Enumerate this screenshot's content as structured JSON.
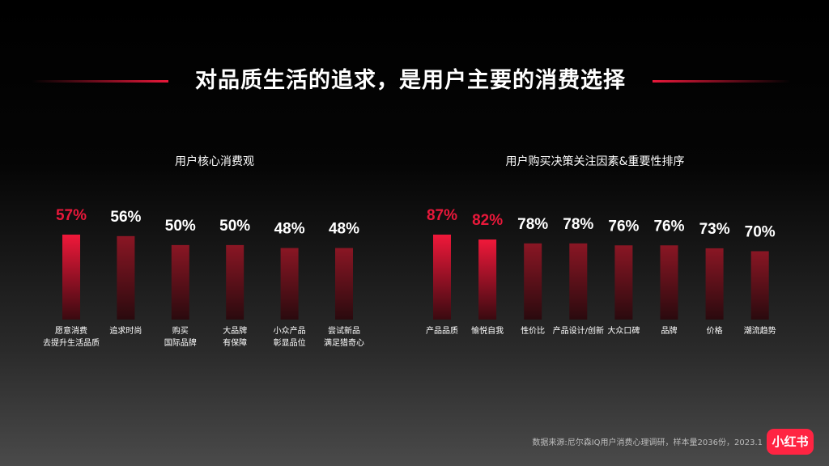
{
  "title": "对品质生活的追求，是用户主要的消费选择",
  "source": "数据来源:尼尔森IQ用户消费心理调研，样本量2036份，2023.1",
  "logo": "小红书",
  "colors": {
    "highlight": "#e8183a",
    "bar_top_red": "#e8183a",
    "bar_top_dark": "#7a1420",
    "text": "#ffffff"
  },
  "chart_data": [
    {
      "type": "bar",
      "title": "用户核心消费观",
      "categories": [
        [
          "愿意消费",
          "去提升生活品质"
        ],
        [
          "追求时尚"
        ],
        [
          "购买",
          "国际品牌"
        ],
        [
          "大品牌",
          "有保障"
        ],
        [
          "小众产品",
          "彰显品位"
        ],
        [
          "尝试新品",
          "满足猎奇心"
        ]
      ],
      "values": [
        57,
        56,
        50,
        50,
        48,
        48
      ],
      "value_labels": [
        "57%",
        "56%",
        "50%",
        "50%",
        "48%",
        "48%"
      ],
      "highlight": [
        0
      ],
      "unit": "%"
    },
    {
      "type": "bar",
      "title": "用户购买决策关注因素&重要性排序",
      "categories": [
        [
          "产品品质"
        ],
        [
          "愉悦自我"
        ],
        [
          "性价比"
        ],
        [
          "产品设计/创新"
        ],
        [
          "大众口碑"
        ],
        [
          "品牌"
        ],
        [
          "价格"
        ],
        [
          "潮流趋势"
        ]
      ],
      "values": [
        87,
        82,
        78,
        78,
        76,
        76,
        73,
        70
      ],
      "value_labels": [
        "87%",
        "82%",
        "78%",
        "78%",
        "76%",
        "76%",
        "73%",
        "70%"
      ],
      "highlight": [
        0,
        1
      ],
      "unit": "%"
    }
  ]
}
